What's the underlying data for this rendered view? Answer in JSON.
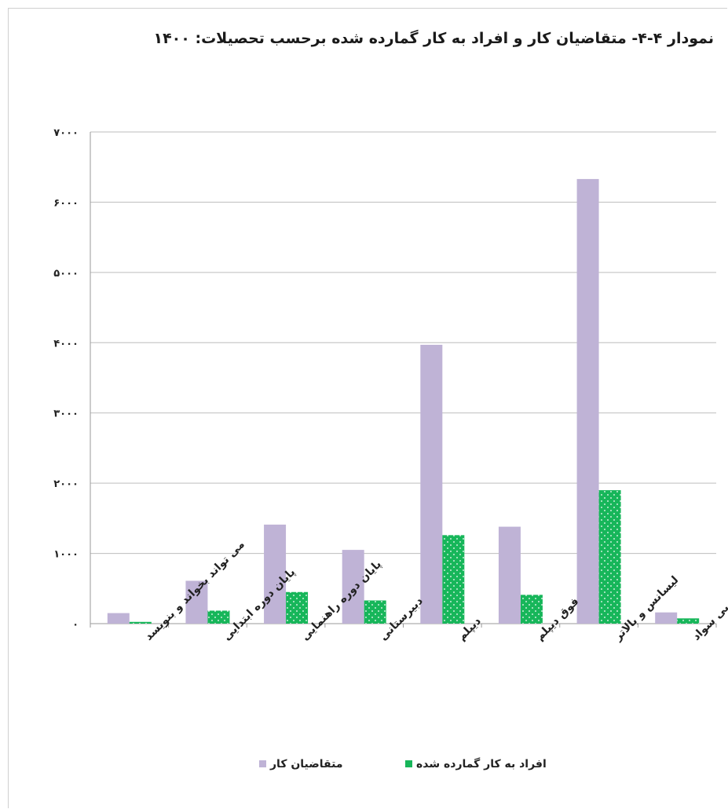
{
  "title": "نمودار ۴-۴- متقاضیان کار و افراد  به کار گمارده شده برحسب تحصیلات: ۱۴۰۰",
  "chart_data": {
    "type": "bar",
    "title": "نمودار ۴-۴- متقاضیان کار و افراد  به کار گمارده شده برحسب تحصیلات: ۱۴۰۰",
    "xlabel": "",
    "ylabel": "",
    "ylim": [
      0,
      7000
    ],
    "yticks": [
      0,
      1000,
      2000,
      3000,
      4000,
      5000,
      6000,
      7000
    ],
    "ytick_labels": [
      "۰",
      "۱۰۰۰",
      "۲۰۰۰",
      "۳۰۰۰",
      "۴۰۰۰",
      "۵۰۰۰",
      "۶۰۰۰",
      "۷۰۰۰"
    ],
    "grid": true,
    "legend_position": "bottom",
    "categories": [
      "می تواند بخواند و بنویسد",
      "پایان دوره ابتدایی",
      "پایان دوره راهنمایی",
      "دبیرستانی",
      "دیپلم",
      "فوق دیپلم",
      "لیسانس و بالاتر",
      "بی سواد"
    ],
    "series": [
      {
        "name": "متقاضیان کار",
        "color": "#bfb3d6",
        "values": [
          150,
          610,
          1410,
          1050,
          3970,
          1380,
          6330,
          160
        ]
      },
      {
        "name": "افراد به کار گمارده شده",
        "color": "#17b65a",
        "values": [
          25,
          185,
          450,
          330,
          1260,
          410,
          1900,
          75
        ]
      }
    ]
  }
}
